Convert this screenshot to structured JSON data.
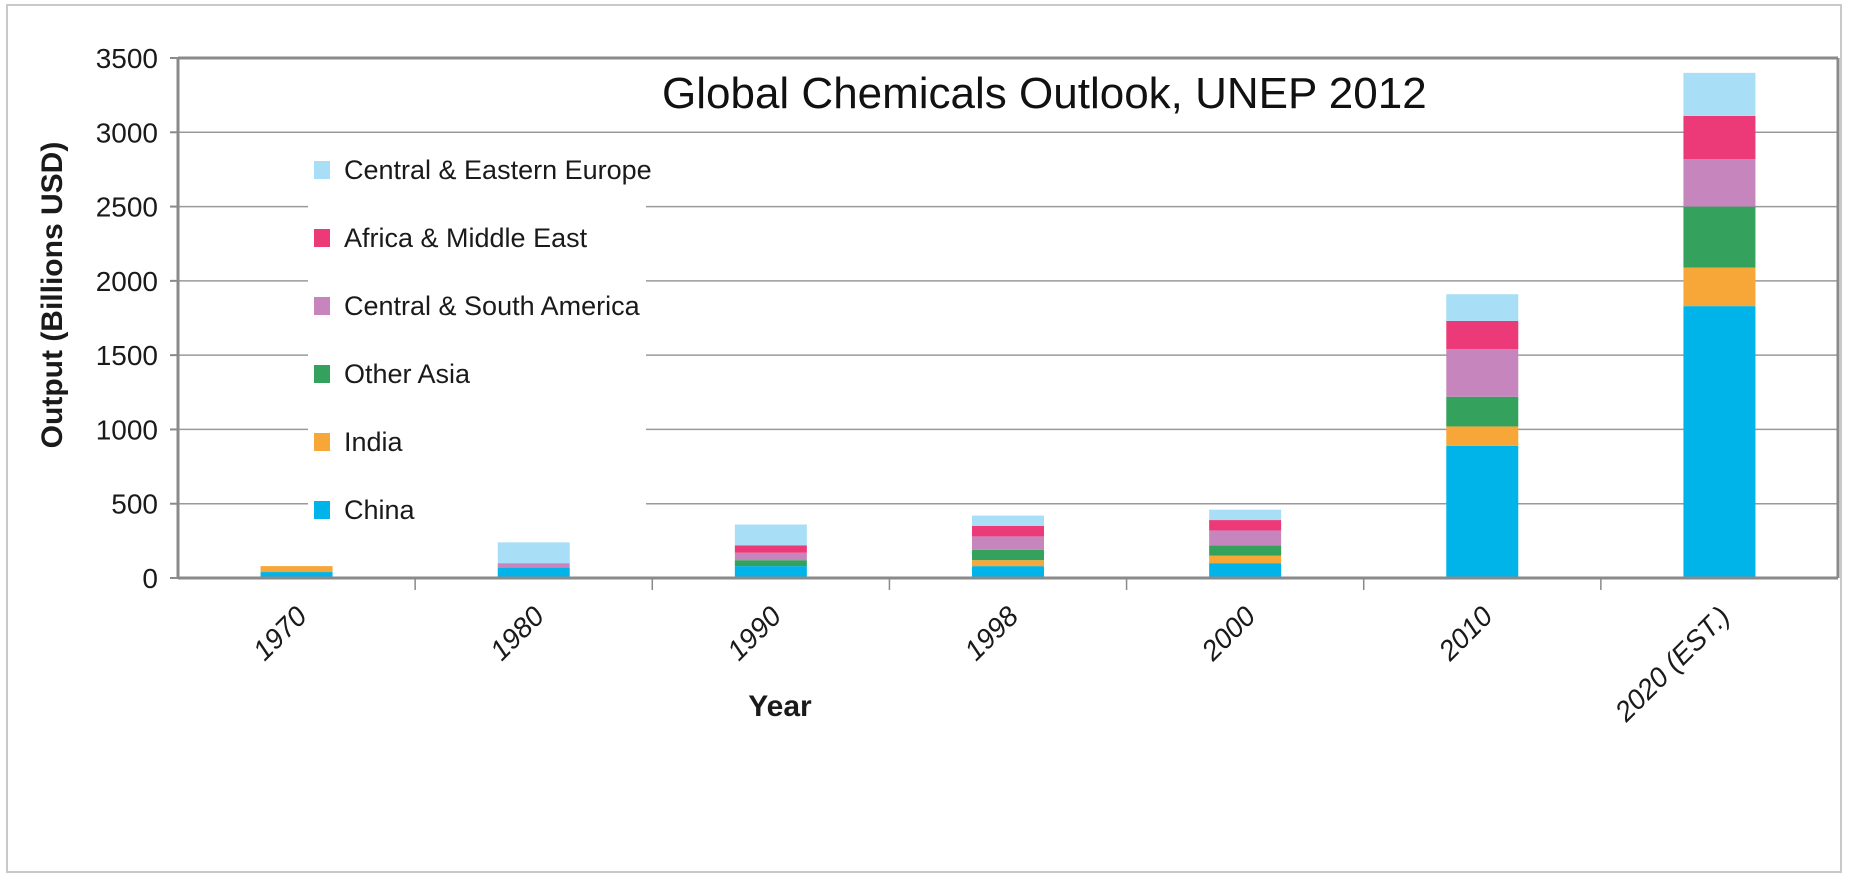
{
  "chart_data": {
    "type": "bar",
    "stacked": true,
    "annotation": "Global Chemicals Outlook, UNEP 2012",
    "xlabel": "Year",
    "ylabel": "Output (Billions USD)",
    "ylim": [
      0,
      3500
    ],
    "yticks": [
      0,
      500,
      1000,
      1500,
      2000,
      2500,
      3000,
      3500
    ],
    "grid": true,
    "legend_position": "left",
    "categories": [
      "1970",
      "1980",
      "1990",
      "1998",
      "2000",
      "2010",
      "2020 (EST.)"
    ],
    "series": [
      {
        "name": "China",
        "color": "#00b4ea",
        "values": [
          40,
          70,
          80,
          80,
          100,
          890,
          1830
        ]
      },
      {
        "name": "India",
        "color": "#f7a738",
        "values": [
          40,
          0,
          0,
          40,
          50,
          130,
          260
        ]
      },
      {
        "name": "Other Asia",
        "color": "#34a15c",
        "values": [
          0,
          0,
          40,
          70,
          70,
          200,
          410
        ]
      },
      {
        "name": "Central & South America",
        "color": "#c785bd",
        "values": [
          0,
          30,
          50,
          90,
          100,
          320,
          320
        ]
      },
      {
        "name": "Africa & Middle East",
        "color": "#ec3a78",
        "values": [
          0,
          0,
          50,
          70,
          70,
          190,
          290
        ]
      },
      {
        "name": "Central & Eastern Europe",
        "color": "#a9dff6",
        "values": [
          0,
          140,
          140,
          70,
          70,
          180,
          290
        ]
      }
    ],
    "legend_order": [
      "Central & Eastern Europe",
      "Africa & Middle East",
      "Central & South America",
      "Other Asia",
      "India",
      "China"
    ]
  }
}
